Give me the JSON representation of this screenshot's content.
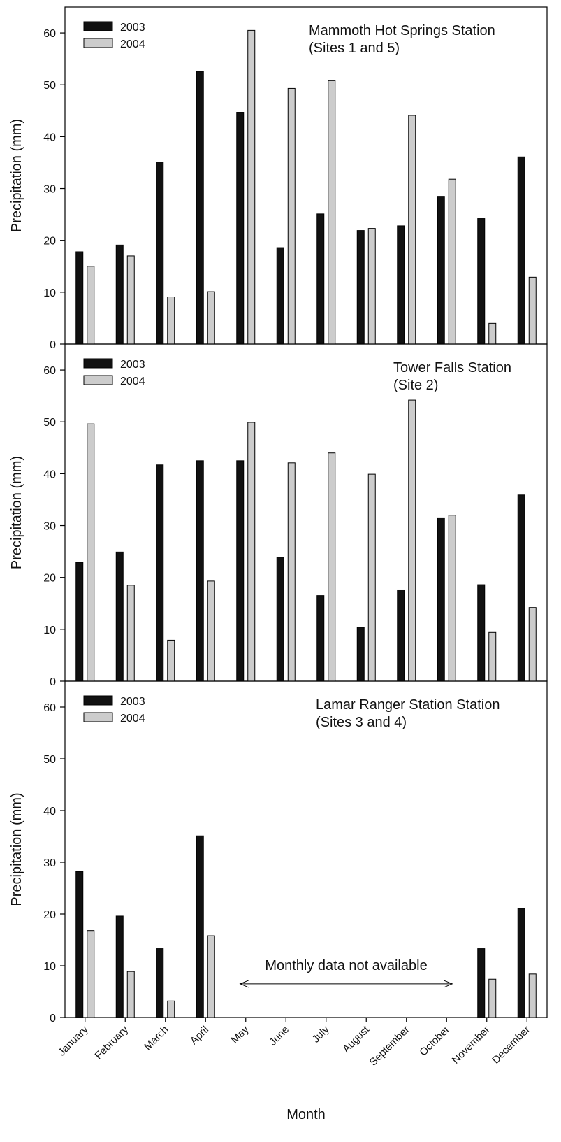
{
  "figure": {
    "xlabel": "Month",
    "months": [
      "January",
      "February",
      "March",
      "April",
      "May",
      "June",
      "July",
      "August",
      "September",
      "October",
      "November",
      "December"
    ]
  },
  "chart_data": [
    {
      "type": "bar",
      "title": "Mammoth Hot Springs Station",
      "subtitle": "(Sites 1 and 5)",
      "ylabel": "Precipitation (mm)",
      "xlabel": "Month",
      "ylim": [
        0,
        65
      ],
      "yticks": [
        0,
        10,
        20,
        30,
        40,
        50,
        60
      ],
      "legend_position": "top-left",
      "grid": false,
      "categories": [
        "January",
        "February",
        "March",
        "April",
        "May",
        "June",
        "July",
        "August",
        "September",
        "October",
        "November",
        "December"
      ],
      "series": [
        {
          "name": "2003",
          "color": "#111111",
          "values": [
            17.8,
            19.1,
            35.1,
            52.6,
            44.7,
            18.6,
            25.1,
            21.9,
            22.8,
            28.5,
            24.2,
            36.1
          ]
        },
        {
          "name": "2004",
          "color": "#cccccc",
          "values": [
            15.0,
            17.0,
            9.1,
            10.1,
            60.5,
            49.3,
            50.8,
            22.3,
            44.1,
            31.8,
            4.0,
            12.9
          ]
        }
      ]
    },
    {
      "type": "bar",
      "title": "Tower Falls Station",
      "subtitle": "(Site 2)",
      "ylabel": "Precipitation (mm)",
      "xlabel": "Month",
      "ylim": [
        0,
        65
      ],
      "yticks": [
        0,
        10,
        20,
        30,
        40,
        50,
        60
      ],
      "legend_position": "top-left",
      "grid": false,
      "categories": [
        "January",
        "February",
        "March",
        "April",
        "May",
        "June",
        "July",
        "August",
        "September",
        "October",
        "November",
        "December"
      ],
      "series": [
        {
          "name": "2003",
          "color": "#111111",
          "values": [
            22.9,
            24.9,
            41.7,
            42.5,
            42.5,
            23.9,
            16.5,
            10.4,
            17.6,
            31.5,
            18.6,
            35.9
          ]
        },
        {
          "name": "2004",
          "color": "#cccccc",
          "values": [
            49.6,
            18.5,
            7.9,
            19.3,
            49.9,
            42.1,
            44.0,
            39.9,
            54.2,
            32.0,
            9.4,
            14.2
          ]
        }
      ]
    },
    {
      "type": "bar",
      "title": "Lamar Ranger Station Station",
      "subtitle": "(Sites 3 and 4)",
      "ylabel": "Precipitation (mm)",
      "xlabel": "Month",
      "ylim": [
        0,
        65
      ],
      "yticks": [
        0,
        10,
        20,
        30,
        40,
        50,
        60
      ],
      "legend_position": "top-left",
      "grid": false,
      "annotation": "Monthly data not available",
      "annotation_span": [
        "May",
        "October"
      ],
      "categories": [
        "January",
        "February",
        "March",
        "April",
        "May",
        "June",
        "July",
        "August",
        "September",
        "October",
        "November",
        "December"
      ],
      "series": [
        {
          "name": "2003",
          "color": "#111111",
          "values": [
            28.2,
            19.6,
            13.3,
            35.1,
            null,
            null,
            null,
            null,
            null,
            null,
            13.3,
            21.1
          ]
        },
        {
          "name": "2004",
          "color": "#cccccc",
          "values": [
            16.8,
            8.9,
            3.2,
            15.8,
            null,
            null,
            null,
            null,
            null,
            null,
            7.4,
            8.4
          ]
        }
      ]
    }
  ]
}
